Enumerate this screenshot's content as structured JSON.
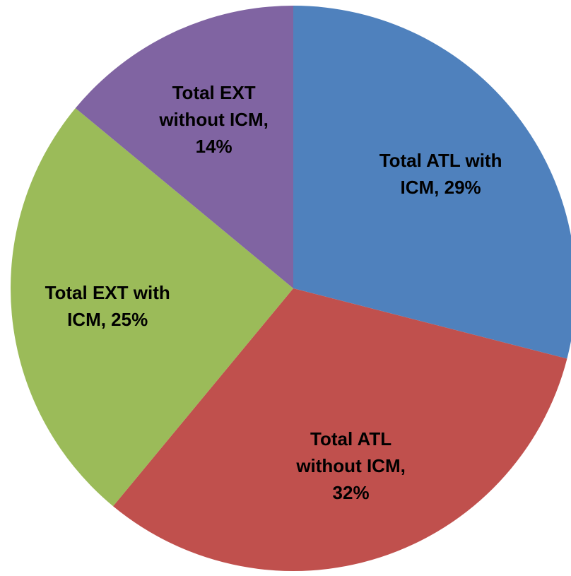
{
  "chart_data": {
    "type": "pie",
    "values": [
      29,
      32,
      25,
      14
    ],
    "value_labels": [
      "Total ATL with ICM, 29%",
      "Total ATL without ICM, 32%",
      "Total EXT with ICM, 25%",
      "Total EXT without ICM, 14%"
    ],
    "colors": [
      "#4f81bd",
      "#c0504d",
      "#9bbb59",
      "#8064a2"
    ]
  }
}
